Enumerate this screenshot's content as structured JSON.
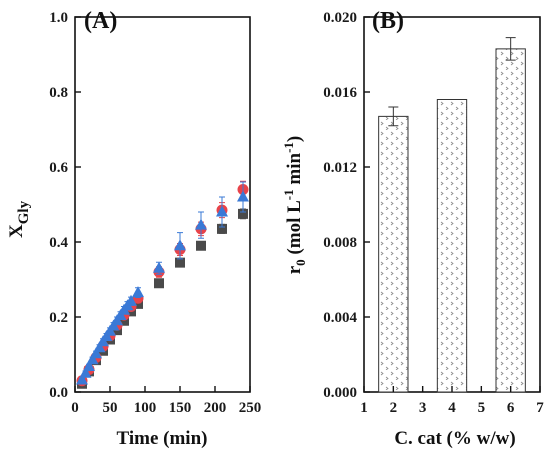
{
  "chart_data": [
    {
      "type": "scatter",
      "panel_label": "(A)",
      "xlabel": "Time (min)",
      "ylabel_main": "X",
      "ylabel_sub": "Gly",
      "xlim": [
        0,
        250
      ],
      "ylim": [
        0,
        1.0
      ],
      "xticks": [
        "0",
        "50",
        "100",
        "150",
        "200",
        "250"
      ],
      "yticks": [
        "0.0",
        "0.2",
        "0.4",
        "0.6",
        "0.8",
        "1.0"
      ],
      "grid": false,
      "series": [
        {
          "marker": "square",
          "color": "#4a4a4a",
          "x": [
            10,
            20,
            30,
            40,
            50,
            60,
            70,
            80,
            90,
            120,
            150,
            180,
            210,
            240
          ],
          "y": [
            0.022,
            0.055,
            0.085,
            0.11,
            0.14,
            0.165,
            0.19,
            0.215,
            0.235,
            0.29,
            0.345,
            0.39,
            0.435,
            0.475
          ],
          "err": [
            0.005,
            0.005,
            0.006,
            0.006,
            0.007,
            0.007,
            0.008,
            0.008,
            0.009,
            0.009,
            0.01,
            0.011,
            0.012,
            0.013
          ]
        },
        {
          "marker": "circle",
          "color": "#e8434a",
          "x": [
            10,
            20,
            30,
            40,
            50,
            60,
            70,
            80,
            90,
            120,
            150,
            180,
            210,
            240
          ],
          "y": [
            0.03,
            0.06,
            0.092,
            0.122,
            0.15,
            0.178,
            0.205,
            0.228,
            0.25,
            0.32,
            0.38,
            0.435,
            0.485,
            0.54
          ],
          "err": [
            0.006,
            0.007,
            0.008,
            0.008,
            0.009,
            0.01,
            0.01,
            0.011,
            0.012,
            0.014,
            0.016,
            0.018,
            0.02,
            0.022
          ]
        },
        {
          "marker": "triangle",
          "color": "#3a79d6",
          "x": [
            10,
            15,
            20,
            25,
            30,
            35,
            40,
            45,
            50,
            55,
            60,
            65,
            70,
            75,
            80,
            90,
            120,
            150,
            180,
            210,
            240
          ],
          "y": [
            0.032,
            0.05,
            0.068,
            0.086,
            0.102,
            0.118,
            0.134,
            0.148,
            0.162,
            0.176,
            0.19,
            0.204,
            0.218,
            0.23,
            0.242,
            0.265,
            0.33,
            0.39,
            0.445,
            0.48,
            0.52
          ],
          "err": [
            0.005,
            0.006,
            0.006,
            0.007,
            0.007,
            0.008,
            0.008,
            0.008,
            0.009,
            0.009,
            0.01,
            0.01,
            0.01,
            0.011,
            0.011,
            0.013,
            0.016,
            0.035,
            0.035,
            0.04,
            0.04
          ]
        }
      ]
    },
    {
      "type": "bar",
      "panel_label": "(B)",
      "xlabel": "C. cat (% w/w)",
      "ylabel": "r",
      "ylabel_sub": "0",
      "ylabel_units_a": " (mol L",
      "ylabel_sup_a": "-1",
      "ylabel_units_b": " min",
      "ylabel_sup_b": "-1",
      "ylabel_close": ")",
      "xlim": [
        1,
        7
      ],
      "ylim": [
        0,
        0.02
      ],
      "xticks": [
        "1",
        "2",
        "3",
        "4",
        "5",
        "6",
        "7"
      ],
      "yticks": [
        "0.000",
        "0.004",
        "0.008",
        "0.012",
        "0.016",
        "0.020"
      ],
      "grid": false,
      "bars": [
        {
          "x": 2,
          "value": 0.0147,
          "err": 0.0005
        },
        {
          "x": 4,
          "value": 0.0156,
          "err": 0.0
        },
        {
          "x": 6,
          "value": 0.0183,
          "err": 0.0006
        }
      ],
      "bar_width": 1.0,
      "bar_pattern": "dotted-chevrons"
    }
  ]
}
